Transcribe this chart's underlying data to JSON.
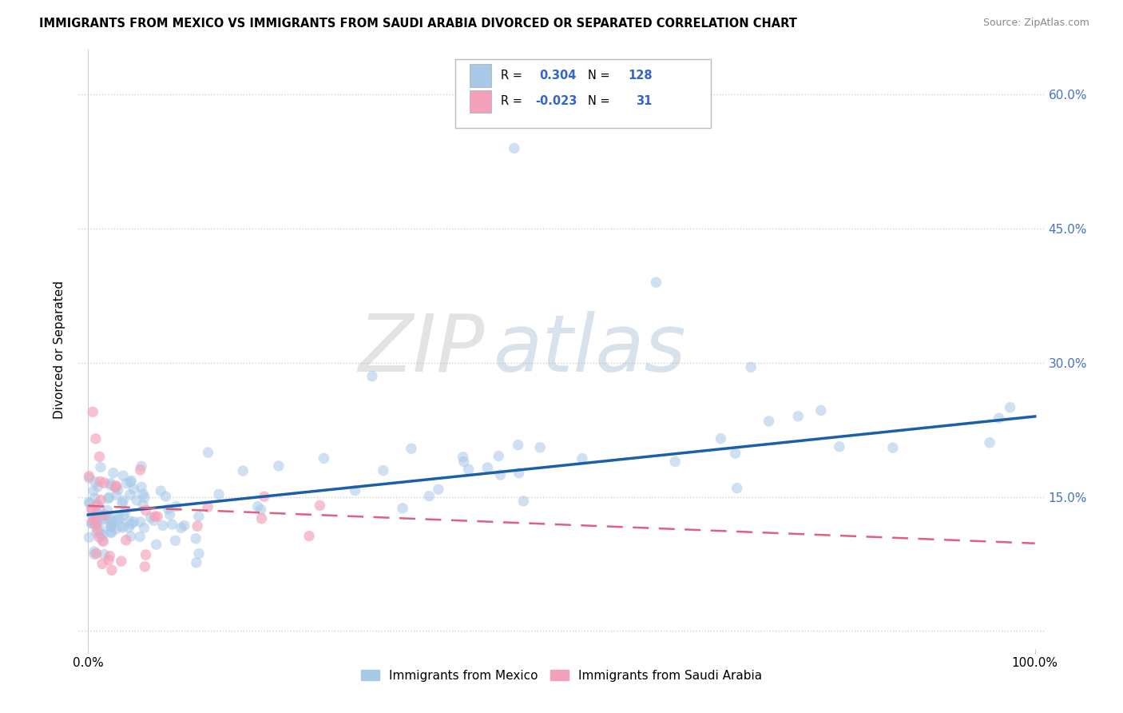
{
  "title": "IMMIGRANTS FROM MEXICO VS IMMIGRANTS FROM SAUDI ARABIA DIVORCED OR SEPARATED CORRELATION CHART",
  "source": "Source: ZipAtlas.com",
  "ylabel": "Divorced or Separated",
  "blue_color": "#a8c8e8",
  "pink_color": "#f4a0b8",
  "blue_line_color": "#1a5fa8",
  "pink_line_color": "#e06080",
  "watermark_zip": "ZIP",
  "watermark_atlas": "atlas",
  "blue_trend_x0": 0.0,
  "blue_trend_x1": 1.0,
  "blue_trend_y0": 0.13,
  "blue_trend_y1": 0.24,
  "pink_trend_x0": 0.0,
  "pink_trend_x1": 1.0,
  "pink_trend_y0": 0.14,
  "pink_trend_y1": 0.098,
  "ytick_vals": [
    0.0,
    0.15,
    0.3,
    0.45,
    0.6
  ],
  "ytick_labels": [
    "",
    "15.0%",
    "30.0%",
    "45.0%",
    "60.0%"
  ],
  "ymin": -0.02,
  "ymax": 0.65,
  "xmin": -0.01,
  "xmax": 1.01,
  "r_mexico": "0.304",
  "n_mexico": "128",
  "r_saudi": "-0.023",
  "n_saudi": "31",
  "legend_label_mexico": "Immigrants from Mexico",
  "legend_label_saudi": "Immigrants from Saudi Arabia"
}
